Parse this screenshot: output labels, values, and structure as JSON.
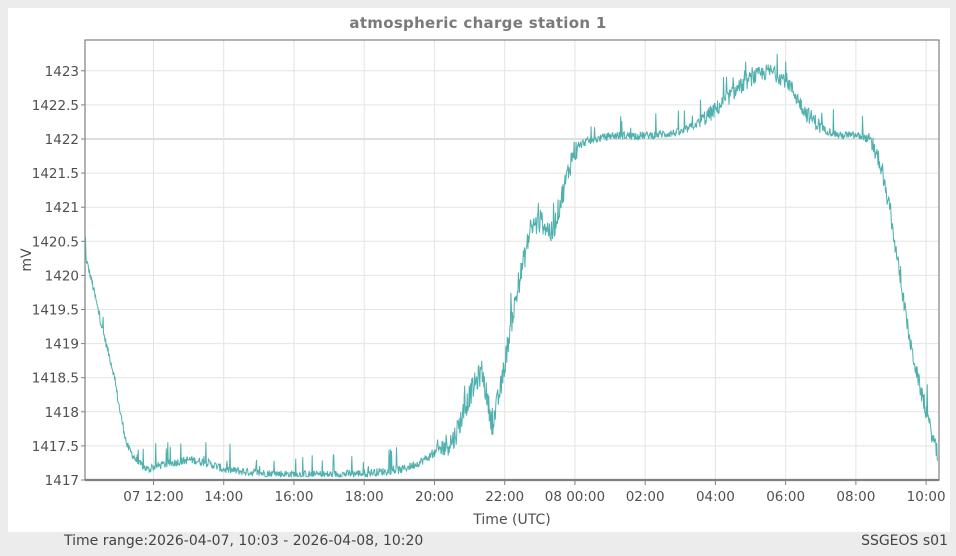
{
  "window": {
    "footer_time_range": "Time range:2026-04-07, 10:03 - 2026-04-08, 10:20",
    "footer_station": "SSGEOS s01"
  },
  "chart_data": {
    "type": "line",
    "title": "atmospheric charge station 1",
    "xlabel": "Time (UTC)",
    "ylabel": "mV",
    "ylim": [
      1417,
      1423.4
    ],
    "xlim": [
      "2026-04-07 10:03",
      "2026-04-08 10:20"
    ],
    "grid": true,
    "legend": null,
    "line_color": "#4fb0ad",
    "yticks": [
      1417,
      1417.5,
      1418,
      1418.5,
      1419,
      1419.5,
      1420,
      1420.5,
      1421,
      1421.5,
      1422,
      1422.5,
      1423
    ],
    "ytick_labels": [
      "1417",
      "1417.5",
      "1418",
      "1418.5",
      "1419",
      "1419.5",
      "1420",
      "1420.5",
      "1421",
      "1421.5",
      "1422",
      "1422.5",
      "1423"
    ],
    "xtick_labels": [
      "07 12:00",
      "14:00",
      "16:00",
      "18:00",
      "20:00",
      "22:00",
      "08 00:00",
      "02:00",
      "04:00",
      "06:00",
      "08:00",
      "10:00"
    ],
    "xtick_hours": [
      1.95,
      3.95,
      5.95,
      7.95,
      9.95,
      11.95,
      13.95,
      15.95,
      17.95,
      19.95,
      21.95,
      23.95
    ],
    "series": [
      {
        "name": "atmospheric charge station 1",
        "x_hours_from_start": [
          0,
          0.2,
          0.5,
          0.8,
          1.0,
          1.2,
          1.5,
          1.8,
          2.0,
          2.5,
          3.0,
          3.5,
          4.0,
          5.0,
          6.0,
          7.0,
          8.0,
          9.0,
          9.5,
          10.0,
          10.5,
          11.0,
          11.3,
          11.6,
          11.9,
          12.1,
          12.4,
          12.7,
          13.0,
          13.3,
          13.6,
          13.9,
          14.2,
          14.6,
          15.0,
          16.0,
          17.0,
          17.5,
          18.0,
          18.5,
          19.0,
          19.5,
          20.0,
          20.5,
          21.0,
          21.5,
          22.0,
          22.3,
          22.6,
          22.9,
          23.2,
          23.5,
          23.8,
          24.1,
          24.28
        ],
        "values": [
          1420.3,
          1419.9,
          1419.2,
          1418.6,
          1418.0,
          1417.5,
          1417.25,
          1417.15,
          1417.2,
          1417.25,
          1417.3,
          1417.25,
          1417.15,
          1417.1,
          1417.08,
          1417.08,
          1417.1,
          1417.15,
          1417.25,
          1417.4,
          1417.6,
          1418.3,
          1418.6,
          1417.8,
          1418.5,
          1419.2,
          1420.0,
          1420.7,
          1420.8,
          1420.6,
          1421.2,
          1421.8,
          1421.95,
          1422.0,
          1422.05,
          1422.05,
          1422.1,
          1422.25,
          1422.45,
          1422.7,
          1422.9,
          1423.0,
          1422.85,
          1422.4,
          1422.15,
          1422.05,
          1422.05,
          1422.0,
          1421.7,
          1421.0,
          1420.0,
          1419.0,
          1418.3,
          1417.7,
          1417.35
        ]
      }
    ]
  }
}
